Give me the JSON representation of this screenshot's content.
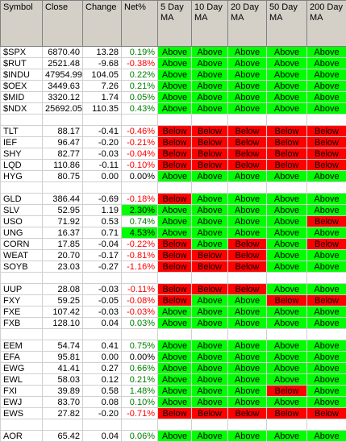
{
  "table": {
    "header": [
      "Symbol",
      "Close",
      "Change",
      "Net%",
      "5 Day MA",
      "10 Day MA",
      "20 Day MA",
      "50 Day MA",
      "200 Day MA"
    ],
    "groups": [
      {
        "rows": [
          {
            "symbol": "$SPX",
            "close": "6870.40",
            "change": "13.28",
            "net": "0.19%",
            "ma": [
              "Above",
              "Above",
              "Above",
              "Above",
              "Above"
            ]
          },
          {
            "symbol": "$RUT",
            "close": "2521.48",
            "change": "-9.68",
            "net": "-0.38%",
            "ma": [
              "Above",
              "Above",
              "Above",
              "Above",
              "Above"
            ]
          },
          {
            "symbol": "$INDU",
            "close": "47954.99",
            "change": "104.05",
            "net": "0.22%",
            "ma": [
              "Above",
              "Above",
              "Above",
              "Above",
              "Above"
            ]
          },
          {
            "symbol": "$OEX",
            "close": "3449.63",
            "change": "7.26",
            "net": "0.21%",
            "ma": [
              "Above",
              "Above",
              "Above",
              "Above",
              "Above"
            ]
          },
          {
            "symbol": "$MID",
            "close": "3320.12",
            "change": "1.74",
            "net": "0.05%",
            "ma": [
              "Above",
              "Above",
              "Above",
              "Above",
              "Above"
            ]
          },
          {
            "symbol": "$NDX",
            "close": "25692.05",
            "change": "110.35",
            "net": "0.43%",
            "ma": [
              "Above",
              "Above",
              "Above",
              "Above",
              "Above"
            ]
          }
        ]
      },
      {
        "rows": [
          {
            "symbol": "TLT",
            "close": "88.17",
            "change": "-0.41",
            "net": "-0.46%",
            "ma": [
              "Below",
              "Below",
              "Below",
              "Below",
              "Below"
            ]
          },
          {
            "symbol": "IEF",
            "close": "96.47",
            "change": "-0.20",
            "net": "-0.21%",
            "ma": [
              "Below",
              "Below",
              "Below",
              "Below",
              "Below"
            ]
          },
          {
            "symbol": "SHY",
            "close": "82.77",
            "change": "-0.03",
            "net": "-0.04%",
            "ma": [
              "Below",
              "Below",
              "Below",
              "Below",
              "Below"
            ]
          },
          {
            "symbol": "LQD",
            "close": "110.86",
            "change": "-0.11",
            "net": "-0.10%",
            "ma": [
              "Below",
              "Below",
              "Below",
              "Below",
              "Below"
            ]
          },
          {
            "symbol": "HYG",
            "close": "80.75",
            "change": "0.00",
            "net": "0.00%",
            "ma": [
              "Above",
              "Above",
              "Above",
              "Above",
              "Above"
            ]
          }
        ]
      },
      {
        "rows": [
          {
            "symbol": "GLD",
            "close": "386.44",
            "change": "-0.69",
            "net": "-0.18%",
            "ma": [
              "Below",
              "Above",
              "Above",
              "Above",
              "Above"
            ]
          },
          {
            "symbol": "SLV",
            "close": "52.95",
            "change": "1.19",
            "net": "2.30%",
            "net_bg": "#00ff00",
            "ma": [
              "Above",
              "Above",
              "Above",
              "Above",
              "Above"
            ]
          },
          {
            "symbol": "USO",
            "close": "71.92",
            "change": "0.53",
            "net": "0.74%",
            "ma": [
              "Above",
              "Above",
              "Above",
              "Above",
              "Below"
            ]
          },
          {
            "symbol": "UNG",
            "close": "16.37",
            "change": "0.71",
            "net": "4.53%",
            "net_bg": "#00ff00",
            "ma": [
              "Above",
              "Above",
              "Above",
              "Above",
              "Above"
            ]
          },
          {
            "symbol": "CORN",
            "close": "17.85",
            "change": "-0.04",
            "net": "-0.22%",
            "ma": [
              "Below",
              "Above",
              "Below",
              "Above",
              "Below"
            ]
          },
          {
            "symbol": "WEAT",
            "close": "20.70",
            "change": "-0.17",
            "net": "-0.81%",
            "ma": [
              "Below",
              "Below",
              "Below",
              "Above",
              "Above"
            ]
          },
          {
            "symbol": "SOYB",
            "close": "23.03",
            "change": "-0.27",
            "net": "-1.16%",
            "ma": [
              "Below",
              "Below",
              "Below",
              "Above",
              "Above"
            ]
          }
        ]
      },
      {
        "rows": [
          {
            "symbol": "UUP",
            "close": "28.08",
            "change": "-0.03",
            "net": "-0.11%",
            "ma": [
              "Below",
              "Below",
              "Below",
              "Above",
              "Above"
            ]
          },
          {
            "symbol": "FXY",
            "close": "59.25",
            "change": "-0.05",
            "net": "-0.08%",
            "ma": [
              "Below",
              "Above",
              "Above",
              "Below",
              "Below"
            ]
          },
          {
            "symbol": "FXE",
            "close": "107.42",
            "change": "-0.03",
            "net": "-0.03%",
            "ma": [
              "Above",
              "Above",
              "Above",
              "Above",
              "Above"
            ]
          },
          {
            "symbol": "FXB",
            "close": "128.10",
            "change": "0.04",
            "net": "0.03%",
            "ma": [
              "Above",
              "Above",
              "Above",
              "Above",
              "Above"
            ]
          }
        ]
      },
      {
        "rows": [
          {
            "symbol": "EEM",
            "close": "54.74",
            "change": "0.41",
            "net": "0.75%",
            "ma": [
              "Above",
              "Above",
              "Above",
              "Above",
              "Above"
            ]
          },
          {
            "symbol": "EFA",
            "close": "95.81",
            "change": "0.00",
            "net": "0.00%",
            "ma": [
              "Above",
              "Above",
              "Above",
              "Above",
              "Above"
            ]
          },
          {
            "symbol": "EWG",
            "close": "41.41",
            "change": "0.27",
            "net": "0.66%",
            "ma": [
              "Above",
              "Above",
              "Above",
              "Above",
              "Above"
            ]
          },
          {
            "symbol": "EWL",
            "close": "58.03",
            "change": "0.12",
            "net": "0.21%",
            "ma": [
              "Above",
              "Above",
              "Above",
              "Above",
              "Above"
            ]
          },
          {
            "symbol": "FXI",
            "close": "39.89",
            "change": "0.58",
            "net": "1.48%",
            "ma": [
              "Above",
              "Above",
              "Above",
              "Below",
              "Above"
            ]
          },
          {
            "symbol": "EWJ",
            "close": "83.70",
            "change": "0.08",
            "net": "0.10%",
            "ma": [
              "Above",
              "Above",
              "Above",
              "Above",
              "Above"
            ]
          },
          {
            "symbol": "EWS",
            "close": "27.82",
            "change": "-0.20",
            "net": "-0.71%",
            "ma": [
              "Below",
              "Below",
              "Below",
              "Below",
              "Below"
            ]
          }
        ]
      },
      {
        "rows": [
          {
            "symbol": "AOR",
            "close": "65.42",
            "change": "0.04",
            "net": "0.06%",
            "ma": [
              "Above",
              "Above",
              "Above",
              "Above",
              "Above"
            ]
          }
        ]
      }
    ]
  }
}
